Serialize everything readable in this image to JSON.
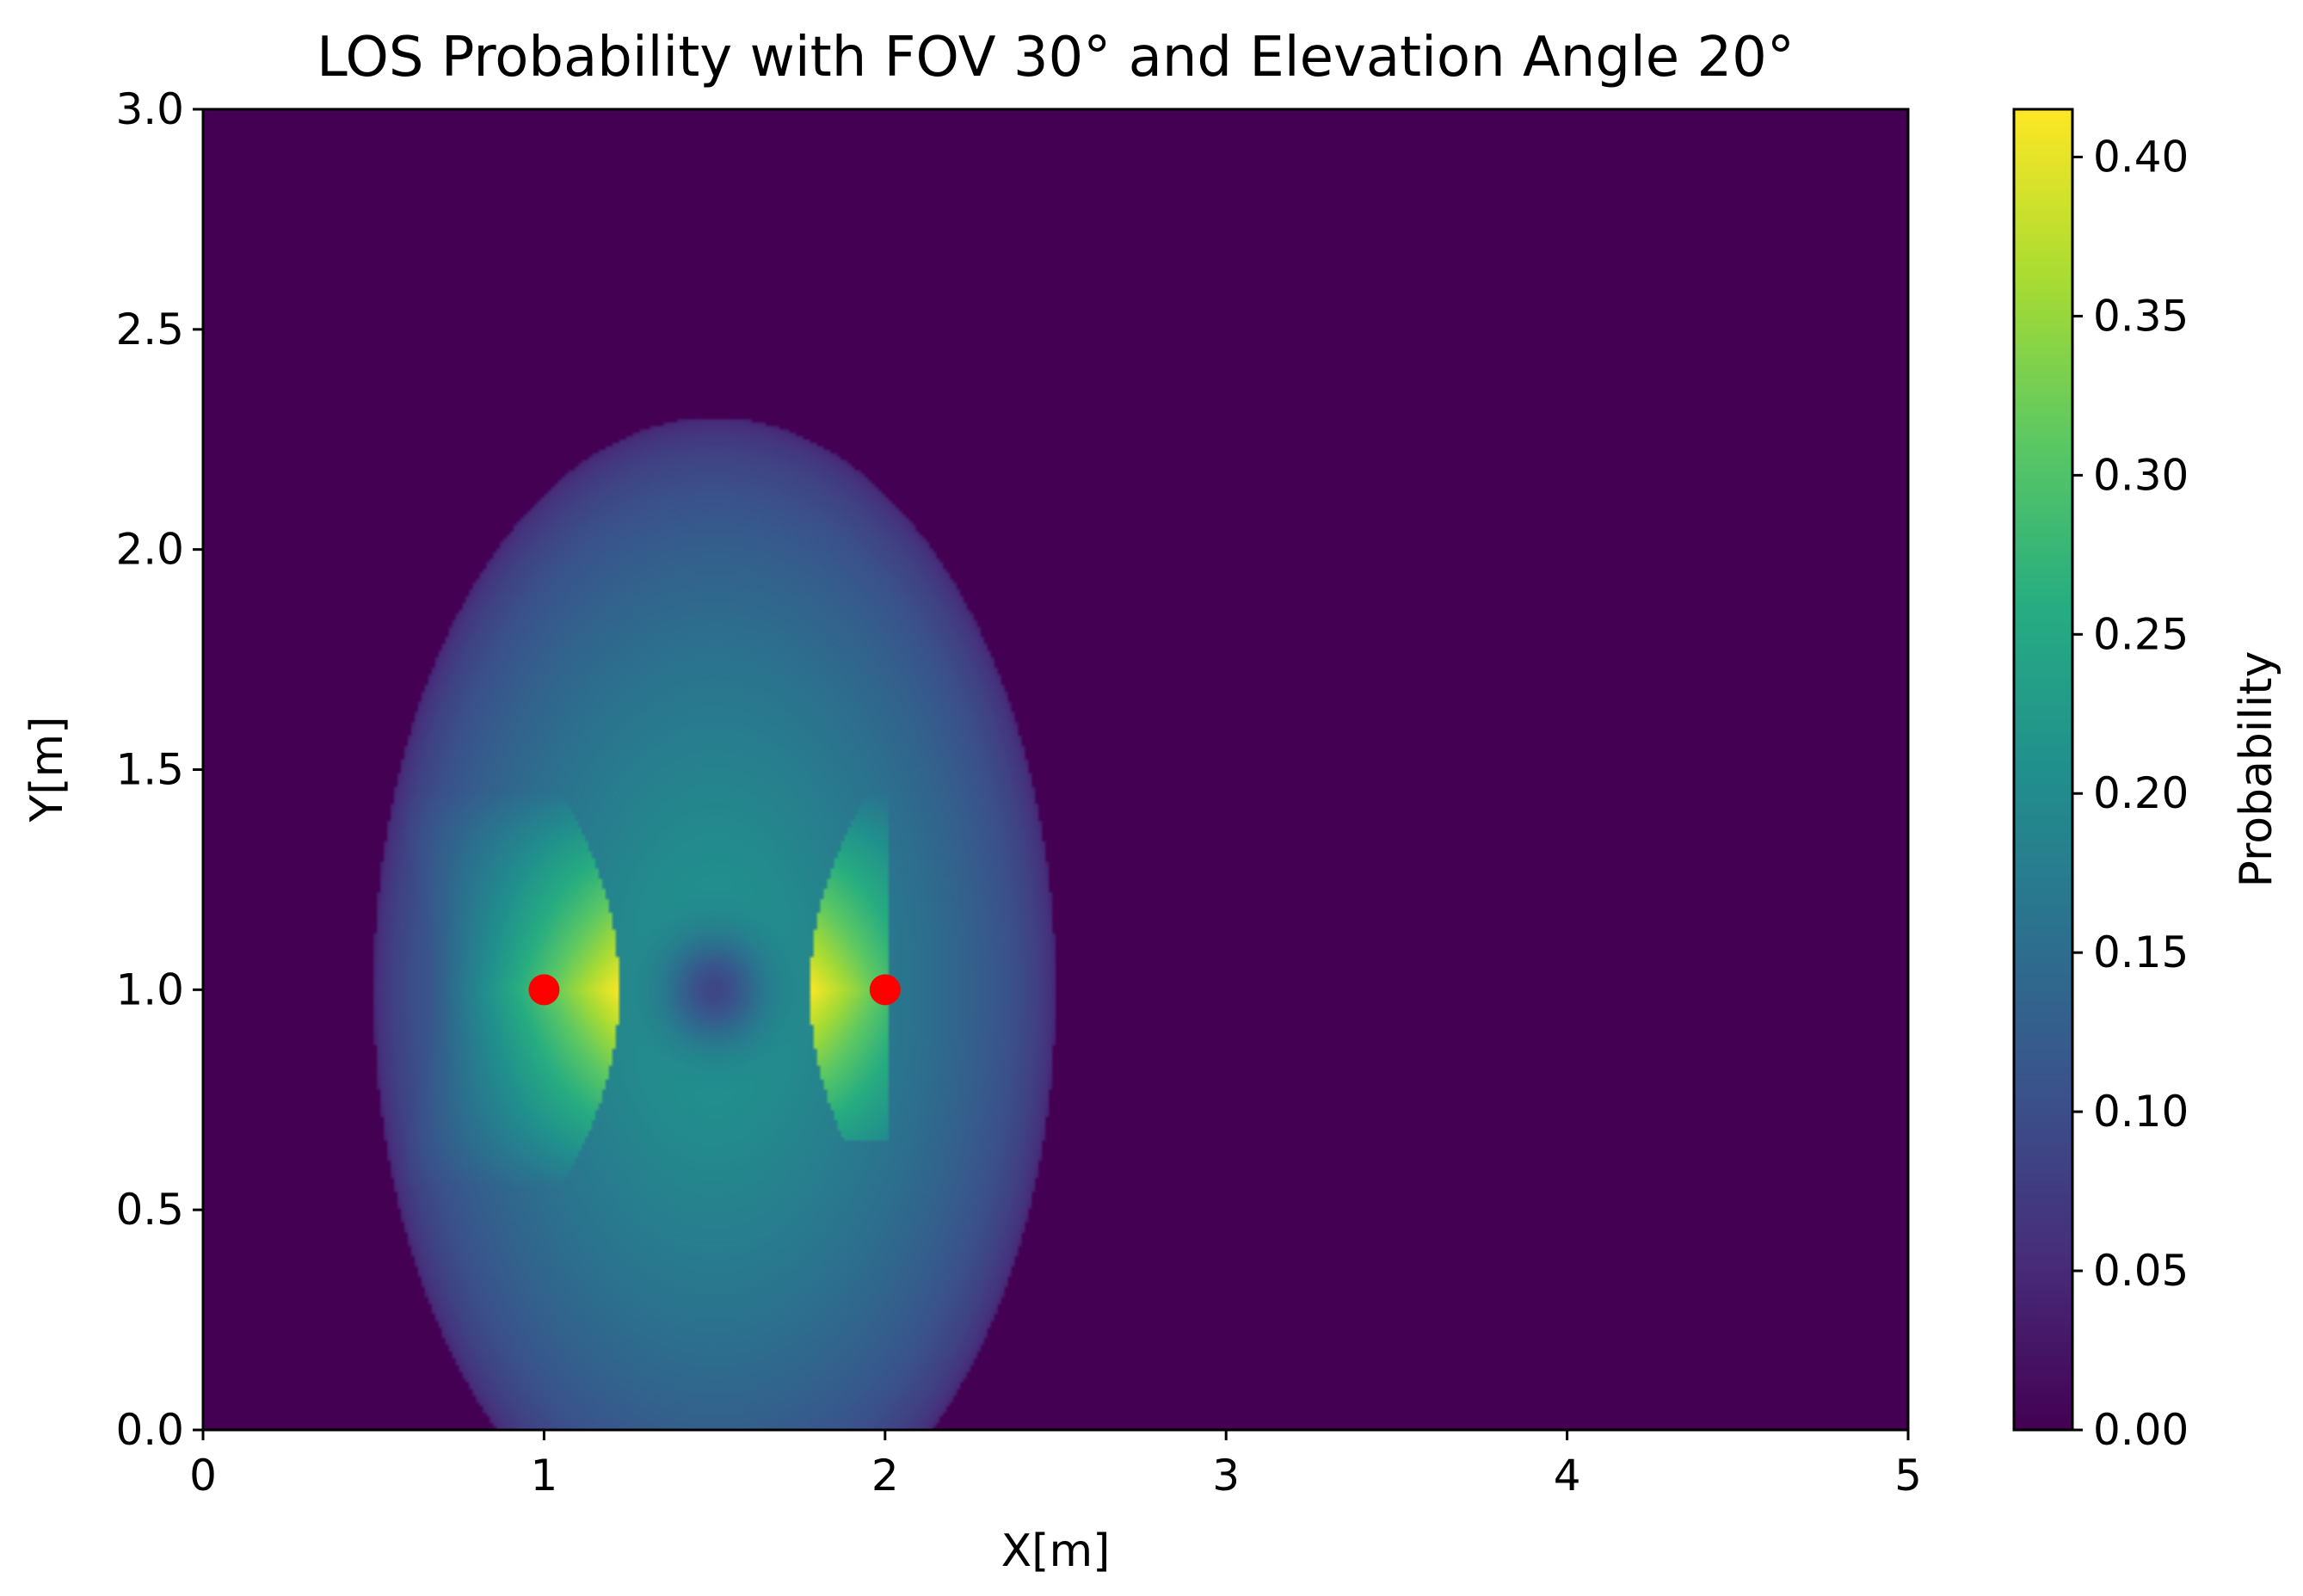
{
  "chart_data": {
    "type": "heatmap",
    "title": "LOS Probability with FOV 30° and Elevation Angle 20°",
    "xlabel": "X[m]",
    "ylabel": "Y[m]",
    "xlim": [
      0,
      5
    ],
    "ylim": [
      0,
      3
    ],
    "x_ticks": [
      "0",
      "1",
      "2",
      "3",
      "4",
      "5"
    ],
    "y_ticks": [
      "0.0",
      "0.5",
      "1.0",
      "1.5",
      "2.0",
      "2.5",
      "3.0"
    ],
    "colormap": "viridis",
    "grid": false,
    "colorbar": {
      "label": "Probability",
      "range": [
        0,
        0.415
      ],
      "ticks": [
        "0.00",
        "0.05",
        "0.10",
        "0.15",
        "0.20",
        "0.25",
        "0.30",
        "0.35",
        "0.40"
      ]
    },
    "region": {
      "shape": "ellipse",
      "center": [
        1.5,
        1.0
      ],
      "semi_axis_x": 1.0,
      "semi_axis_y": 1.3,
      "value_range": [
        0.02,
        0.41
      ]
    },
    "markers": [
      {
        "x": 1.0,
        "y": 1.0,
        "color": "#ff0000"
      },
      {
        "x": 2.0,
        "y": 1.0,
        "color": "#ff0000"
      }
    ],
    "background_value": 0.0
  }
}
